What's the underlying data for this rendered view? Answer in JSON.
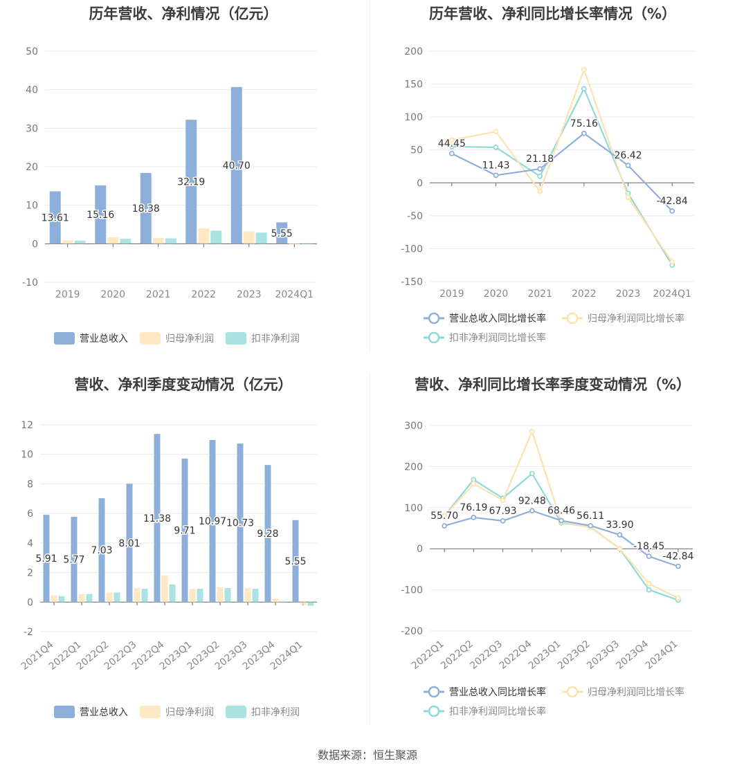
{
  "source": "数据来源：恒生聚源",
  "colors": {
    "revenue": "#8fafdb",
    "net": "#fde2b0",
    "deducted": "#8fd9d9",
    "net_line": "#fde2b0",
    "deducted_line": "#8fd9d9"
  },
  "chart_data": [
    {
      "type": "bar",
      "title": "历年营收、净利情况（亿元）",
      "categories": [
        "2019",
        "2020",
        "2021",
        "2022",
        "2023",
        "2024Q1"
      ],
      "yticks": [
        "50",
        "40",
        "30",
        "20",
        "10",
        "0",
        "-10"
      ],
      "ylim": [
        -10,
        50
      ],
      "series": [
        {
          "name": "营业总收入",
          "values": [
            13.61,
            15.16,
            18.38,
            32.19,
            40.7,
            5.55
          ],
          "labels": [
            "13.61",
            "15.16",
            "18.38",
            "32.19",
            "40.70",
            "5.55"
          ]
        },
        {
          "name": "归母净利润",
          "values": [
            0.9,
            1.7,
            1.5,
            4.0,
            3.2,
            0.1
          ]
        },
        {
          "name": "扣非净利润",
          "values": [
            0.8,
            1.3,
            1.4,
            3.4,
            2.9,
            0.15
          ]
        }
      ],
      "legend": "bottom"
    },
    {
      "type": "line",
      "title": "历年营收、净利同比增长率情况（%）",
      "categories": [
        "2019",
        "2020",
        "2021",
        "2022",
        "2023",
        "2024Q1"
      ],
      "yticks": [
        "200",
        "150",
        "100",
        "50",
        "0",
        "-50",
        "-100",
        "-150"
      ],
      "ylim": [
        -150,
        200
      ],
      "series": [
        {
          "name": "营业总收入同比增长率",
          "values": [
            44.45,
            11.43,
            21.18,
            75.16,
            26.42,
            -42.84
          ],
          "labels": [
            "44.45",
            "11.43",
            "21.18",
            "75.16",
            "26.42",
            "-42.84"
          ]
        },
        {
          "name": "归母净利润同比增长率",
          "values": [
            65,
            78,
            -13,
            172,
            -22,
            -120
          ]
        },
        {
          "name": "扣非净利润同比增长率",
          "values": [
            55,
            54,
            10,
            143,
            -16,
            -125
          ]
        }
      ],
      "legend": "bottom"
    },
    {
      "type": "bar",
      "title": "营收、净利季度变动情况（亿元）",
      "categories": [
        "2021Q4",
        "2022Q1",
        "2022Q2",
        "2022Q3",
        "2022Q4",
        "2023Q1",
        "2023Q2",
        "2023Q3",
        "2023Q4",
        "2024Q1"
      ],
      "yticks": [
        "12",
        "10",
        "8",
        "6",
        "4",
        "2",
        "0",
        "-2"
      ],
      "ylim": [
        -2,
        12
      ],
      "series": [
        {
          "name": "营业总收入",
          "values": [
            5.91,
            5.77,
            7.03,
            8.01,
            11.38,
            9.71,
            10.97,
            10.73,
            9.28,
            5.55
          ],
          "labels": [
            "5.91",
            "5.77",
            "7.03",
            "8.01",
            "11.38",
            "9.71",
            "10.97",
            "10.73",
            "9.28",
            "5.55"
          ]
        },
        {
          "name": "归母净利润",
          "values": [
            0.45,
            0.55,
            0.65,
            0.95,
            1.8,
            0.9,
            1.0,
            0.95,
            0.25,
            -0.2
          ]
        },
        {
          "name": "扣非净利润",
          "values": [
            0.4,
            0.55,
            0.65,
            0.9,
            1.2,
            0.9,
            0.95,
            0.9,
            0.0,
            -0.25
          ]
        }
      ],
      "legend": "bottom"
    },
    {
      "type": "line",
      "title": "营收、净利同比增长率季度变动情况（%）",
      "categories": [
        "2022Q1",
        "2022Q2",
        "2022Q3",
        "2022Q4",
        "2023Q1",
        "2023Q2",
        "2023Q3",
        "2023Q4",
        "2024Q1"
      ],
      "yticks": [
        "300",
        "200",
        "100",
        "0",
        "-100",
        "-200"
      ],
      "ylim": [
        -200,
        300
      ],
      "series": [
        {
          "name": "营业总收入同比增长率",
          "values": [
            55.7,
            76.19,
            67.93,
            92.48,
            68.46,
            56.11,
            33.9,
            -18.45,
            -42.84
          ],
          "labels": [
            "55.70",
            "76.19",
            "67.93",
            "92.48",
            "68.46",
            "56.11",
            "33.90",
            "-18.45",
            "-42.84"
          ]
        },
        {
          "name": "归母净利润同比增长率",
          "values": [
            80,
            158,
            118,
            285,
            65,
            52,
            0,
            -85,
            -120
          ]
        },
        {
          "name": "扣非净利润同比增长率",
          "values": [
            80,
            168,
            123,
            183,
            63,
            53,
            0,
            -100,
            -125
          ]
        }
      ],
      "legend": "bottom"
    }
  ]
}
